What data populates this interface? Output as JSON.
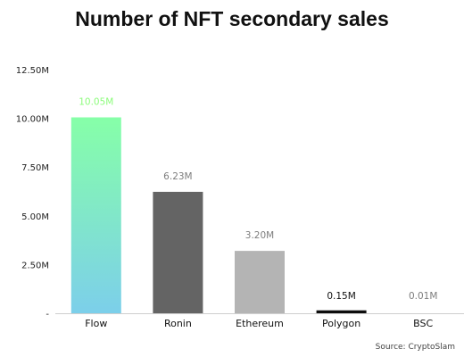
{
  "colors": {
    "flow_top": "#86ffa8",
    "flow_bottom": "#7ccfea",
    "ronin": "#646464",
    "ethereum": "#b4b4b4",
    "polygon": "#0d0d0d",
    "bsc": "#ffffff",
    "flow_label": "#8dfc7c",
    "label_gray": "#7d7d7d",
    "label_dark": "#111111",
    "axis_text": "#222222"
  },
  "chart_data": {
    "type": "bar",
    "title": "Number of NFT secondary sales",
    "source": "Source: CryptoSlam",
    "categories": [
      "Flow",
      "Ronin",
      "Ethereum",
      "Polygon",
      "BSC"
    ],
    "values": [
      10.05,
      6.23,
      3.2,
      0.15,
      0.01
    ],
    "value_labels": [
      "10.05M",
      "6.23M",
      "3.20M",
      "0.15M",
      "0.01M"
    ],
    "y_ticks": [
      0,
      2.5,
      5,
      7.5,
      10,
      12.5
    ],
    "y_tick_labels": [
      "-",
      "2.50M",
      "5.00M",
      "7.50M",
      "10.00M",
      "12.50M"
    ],
    "ylim": [
      0,
      12.5
    ],
    "grid": false,
    "legend": "none"
  }
}
